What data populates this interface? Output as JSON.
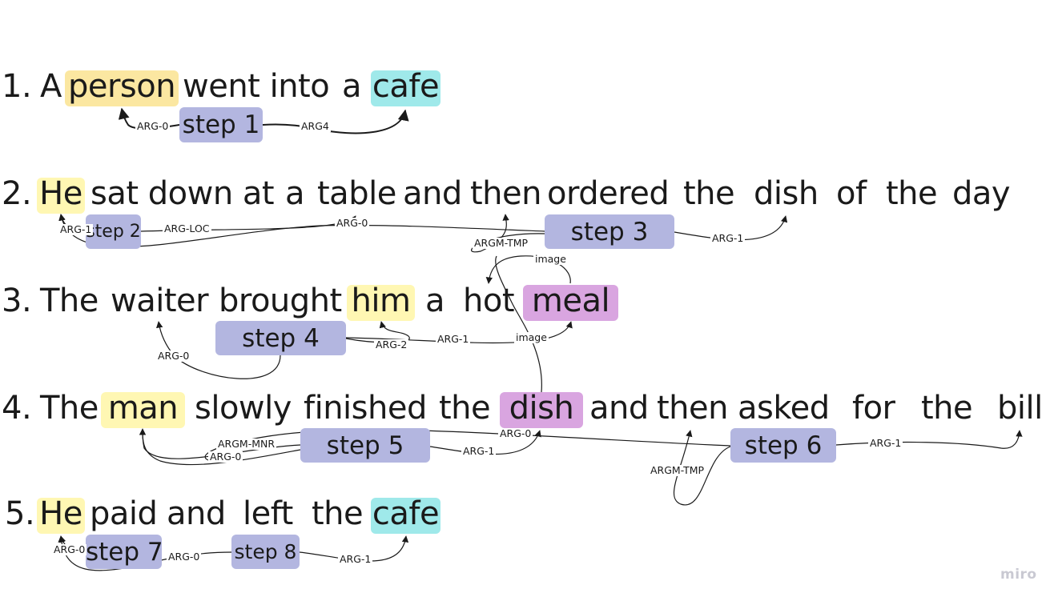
{
  "colors": {
    "person_highlight": "#fbe7a1",
    "he_highlight": "#fff7b3",
    "cafe_highlight": "#9fe9ea",
    "meal_highlight": "#d9a5e0",
    "step_fill": "#b3b6e0",
    "arc_stroke": "#1a1a1a"
  },
  "sentences": [
    {
      "number": "1.",
      "words": [
        "A",
        "person",
        "went into",
        "a",
        "cafe"
      ]
    },
    {
      "number": "2.",
      "words": [
        "He",
        "sat down at",
        "a",
        "table",
        "and",
        "then",
        "ordered",
        "the",
        "dish",
        "of",
        "the",
        "day"
      ]
    },
    {
      "number": "3.",
      "words": [
        "The",
        "waiter",
        "brought",
        "him",
        "a",
        "hot",
        "meal"
      ]
    },
    {
      "number": "4.",
      "words": [
        "The",
        "man",
        "slowly",
        "finished",
        "the",
        "dish",
        "and",
        "then",
        "asked",
        "for",
        "the",
        "bill"
      ]
    },
    {
      "number": "5.",
      "words": [
        "He",
        "paid",
        "and",
        "left",
        "the",
        "cafe"
      ]
    }
  ],
  "steps": [
    "step 1",
    "step 2",
    "step 3",
    "step 4",
    "step 5",
    "step 6",
    "step 7",
    "step 8"
  ],
  "edge_labels": {
    "s1_arg0": "ARG-0",
    "s1_arg4": "ARG4",
    "s2_arg1": "ARG-1",
    "s2_argloc": "ARG-LOC",
    "s3_arg0": "ARG-0",
    "s3_argmtmp": "ARGM-TMP",
    "s3_arg1": "ARG-1",
    "image_top": "image",
    "image_mid": "image",
    "s4_arg0": "ARG-0",
    "s4_arg2": "ARG-2",
    "s4_arg1": "ARG-1",
    "s5_argmmnr": "ARGM-MNR",
    "s5_arg0": "ARG-0",
    "s5_arg1": "ARG-1",
    "s6_arg0": "ARG-0",
    "s6_argmtmp": "ARGM-TMP",
    "s6_arg1": "ARG-1",
    "s7_arg0": "ARG-0",
    "s8_arg0": "ARG-0",
    "s8_arg1": "ARG-1"
  },
  "watermark": "miro"
}
